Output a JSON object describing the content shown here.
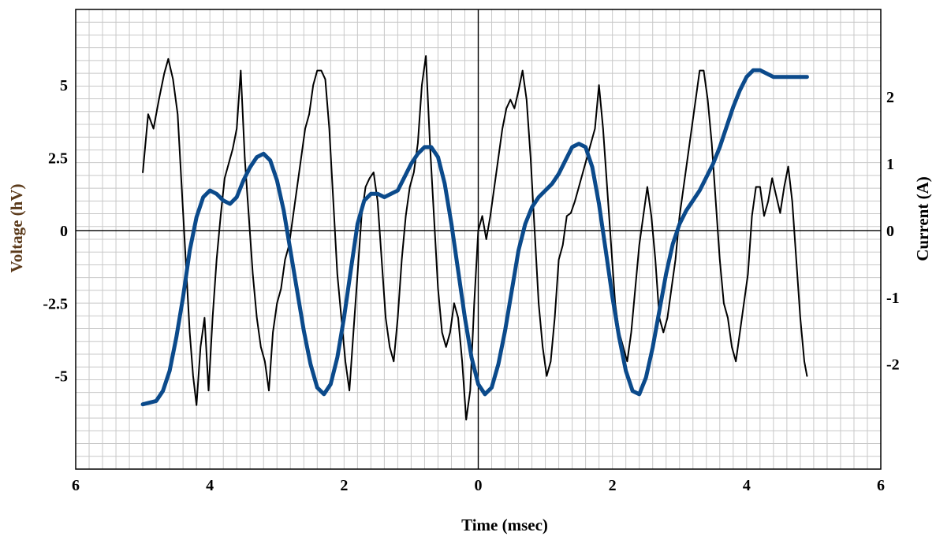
{
  "chart_data": {
    "type": "line",
    "title": "",
    "xlabel": "Time (msec)",
    "ylabel_left": "Voltage (hV)",
    "ylabel_right": "Current (A)",
    "x_tick_labels": [
      "6",
      "4",
      "2",
      "0",
      "2",
      "4",
      "6"
    ],
    "x_tick_values": [
      -6,
      -4,
      -2,
      0,
      2,
      4,
      6
    ],
    "y_left_ticks": [
      "5",
      "2.5",
      "0",
      "-2.5",
      "-5"
    ],
    "y_left_tick_values": [
      5,
      2.5,
      0,
      -2.5,
      -5
    ],
    "y_right_ticks": [
      "2",
      "1",
      "0",
      "-1",
      "-2"
    ],
    "y_right_tick_values": [
      2,
      1,
      0,
      -1,
      -2
    ],
    "xlim": [
      -6,
      6
    ],
    "ylim_left": [
      -8.2,
      7.6
    ],
    "ylim_right": [
      -3.57,
      3.31
    ],
    "grid": true,
    "colors": {
      "voltage": "#000000",
      "current": "#0b4a8b",
      "grid": "#c8c8c8"
    },
    "series": [
      {
        "axis": "left",
        "x": [
          -5,
          -4.92,
          -4.84,
          -4.76,
          -4.68,
          -4.62,
          -4.55,
          -4.48,
          -4.42,
          -4.36,
          -4.3,
          -4.25,
          -4.2,
          -4.14,
          -4.08,
          -4.02,
          -3.96,
          -3.9,
          -3.84,
          -3.78,
          -3.72,
          -3.66,
          -3.6,
          -3.54,
          -3.48,
          -3.42,
          -3.36,
          -3.3,
          -3.24,
          -3.18,
          -3.12,
          -3.06,
          -3.0,
          -2.94,
          -2.88,
          -2.82,
          -2.76,
          -2.7,
          -2.64,
          -2.58,
          -2.52,
          -2.46,
          -2.4,
          -2.34,
          -2.28,
          -2.22,
          -2.16,
          -2.1,
          -2.04,
          -1.98,
          -1.92,
          -1.86,
          -1.8,
          -1.74,
          -1.68,
          -1.62,
          -1.56,
          -1.5,
          -1.44,
          -1.38,
          -1.32,
          -1.26,
          -1.2,
          -1.14,
          -1.08,
          -1.02,
          -0.96,
          -0.9,
          -0.84,
          -0.78,
          -0.72,
          -0.66,
          -0.6,
          -0.54,
          -0.48,
          -0.42,
          -0.36,
          -0.3,
          -0.24,
          -0.18,
          -0.12,
          -0.06,
          0.0,
          0.06,
          0.12,
          0.18,
          0.24,
          0.3,
          0.36,
          0.42,
          0.48,
          0.54,
          0.6,
          0.66,
          0.72,
          0.78,
          0.84,
          0.9,
          0.96,
          1.02,
          1.08,
          1.14,
          1.2,
          1.26,
          1.32,
          1.38,
          1.44,
          1.5,
          1.56,
          1.62,
          1.68,
          1.74,
          1.8,
          1.86,
          1.92,
          1.98,
          2.04,
          2.1,
          2.16,
          2.22,
          2.28,
          2.34,
          2.4,
          2.46,
          2.52,
          2.58,
          2.64,
          2.7,
          2.76,
          2.82,
          2.88,
          2.94,
          3.0,
          3.06,
          3.12,
          3.18,
          3.24,
          3.3,
          3.36,
          3.42,
          3.48,
          3.54,
          3.6,
          3.66,
          3.72,
          3.78,
          3.84,
          3.9,
          3.96,
          4.02,
          4.08,
          4.14,
          4.2,
          4.26,
          4.32,
          4.38,
          4.44,
          4.5,
          4.56,
          4.62,
          4.68,
          4.74,
          4.8,
          4.86,
          4.9
        ],
        "y": [
          2.0,
          4.0,
          3.5,
          4.5,
          5.4,
          5.9,
          5.2,
          4.0,
          1.5,
          -1.0,
          -3.5,
          -5.0,
          -6.0,
          -4.0,
          -3.0,
          -5.5,
          -3.0,
          -1.0,
          0.5,
          1.8,
          2.3,
          2.8,
          3.5,
          5.5,
          2.5,
          0.5,
          -1.5,
          -3.0,
          -4.0,
          -4.5,
          -5.5,
          -3.5,
          -2.5,
          -2.0,
          -1.0,
          -0.5,
          0.5,
          1.5,
          2.5,
          3.5,
          4.0,
          5.0,
          5.5,
          5.5,
          5.2,
          3.5,
          1.0,
          -1.5,
          -3.0,
          -4.5,
          -5.5,
          -3.5,
          -1.5,
          0.5,
          1.5,
          1.8,
          2.0,
          1.0,
          -1.0,
          -3.0,
          -4.0,
          -4.5,
          -3.0,
          -1.0,
          0.5,
          1.5,
          2.0,
          3.0,
          5.0,
          6.0,
          3.0,
          0.5,
          -2.0,
          -3.5,
          -4.0,
          -3.5,
          -2.5,
          -3.0,
          -4.5,
          -6.5,
          -5.5,
          -2.5,
          0.0,
          0.5,
          -0.3,
          0.5,
          1.5,
          2.5,
          3.5,
          4.2,
          4.5,
          4.2,
          4.8,
          5.5,
          4.5,
          2.5,
          0.0,
          -2.5,
          -4.0,
          -5.0,
          -4.5,
          -3.0,
          -1.0,
          -0.5,
          0.5,
          0.6,
          1.0,
          1.5,
          2.0,
          2.5,
          3.0,
          3.5,
          5.0,
          3.5,
          1.5,
          -0.5,
          -2.5,
          -3.5,
          -4.0,
          -4.5,
          -3.5,
          -2.0,
          -0.5,
          0.5,
          1.5,
          0.5,
          -1.0,
          -3.0,
          -3.5,
          -3.0,
          -2.0,
          -1.0,
          0.5,
          1.5,
          2.5,
          3.5,
          4.5,
          5.5,
          5.5,
          4.5,
          3.0,
          1.0,
          -1.0,
          -2.5,
          -3.0,
          -4.0,
          -4.5,
          -3.5,
          -2.5,
          -1.5,
          0.5,
          1.5,
          1.5,
          0.5,
          1.0,
          1.8,
          1.2,
          0.6,
          1.5,
          2.2,
          1.0,
          -1.0,
          -3.0,
          -4.5,
          -5.0
        ]
      },
      {
        "axis": "right",
        "x": [
          -5.0,
          -4.8,
          -4.7,
          -4.6,
          -4.5,
          -4.4,
          -4.3,
          -4.2,
          -4.1,
          -4.0,
          -3.9,
          -3.8,
          -3.7,
          -3.6,
          -3.5,
          -3.4,
          -3.3,
          -3.2,
          -3.1,
          -3.0,
          -2.9,
          -2.8,
          -2.7,
          -2.6,
          -2.5,
          -2.4,
          -2.3,
          -2.2,
          -2.1,
          -2.0,
          -1.9,
          -1.8,
          -1.7,
          -1.6,
          -1.5,
          -1.4,
          -1.3,
          -1.2,
          -1.1,
          -1.0,
          -0.9,
          -0.8,
          -0.7,
          -0.6,
          -0.5,
          -0.4,
          -0.3,
          -0.2,
          -0.1,
          0.0,
          0.1,
          0.2,
          0.3,
          0.4,
          0.5,
          0.6,
          0.7,
          0.8,
          0.9,
          1.0,
          1.1,
          1.2,
          1.3,
          1.4,
          1.5,
          1.6,
          1.7,
          1.8,
          1.9,
          2.0,
          2.1,
          2.2,
          2.3,
          2.4,
          2.5,
          2.6,
          2.7,
          2.8,
          2.9,
          3.0,
          3.1,
          3.2,
          3.3,
          3.4,
          3.5,
          3.6,
          3.7,
          3.8,
          3.9,
          4.0,
          4.1,
          4.2,
          4.3,
          4.4,
          4.5,
          4.6,
          4.7,
          4.8,
          4.9
        ],
        "y": [
          -2.6,
          -2.55,
          -2.4,
          -2.1,
          -1.6,
          -1.0,
          -0.3,
          0.2,
          0.5,
          0.6,
          0.55,
          0.45,
          0.4,
          0.5,
          0.75,
          0.95,
          1.1,
          1.15,
          1.05,
          0.75,
          0.3,
          -0.3,
          -0.9,
          -1.5,
          -2.0,
          -2.35,
          -2.45,
          -2.3,
          -1.9,
          -1.3,
          -0.6,
          0.1,
          0.45,
          0.55,
          0.55,
          0.5,
          0.55,
          0.6,
          0.8,
          1.0,
          1.15,
          1.25,
          1.25,
          1.1,
          0.7,
          0.1,
          -0.6,
          -1.3,
          -1.9,
          -2.3,
          -2.45,
          -2.35,
          -2.0,
          -1.5,
          -0.9,
          -0.3,
          0.1,
          0.35,
          0.5,
          0.6,
          0.7,
          0.85,
          1.05,
          1.25,
          1.3,
          1.25,
          0.95,
          0.4,
          -0.3,
          -1.0,
          -1.6,
          -2.1,
          -2.4,
          -2.45,
          -2.2,
          -1.75,
          -1.2,
          -0.65,
          -0.2,
          0.1,
          0.3,
          0.45,
          0.6,
          0.8,
          1.0,
          1.25,
          1.55,
          1.85,
          2.1,
          2.3,
          2.4,
          2.4,
          2.35,
          2.3,
          2.3,
          2.3,
          2.3,
          2.3,
          2.3
        ]
      }
    ]
  }
}
